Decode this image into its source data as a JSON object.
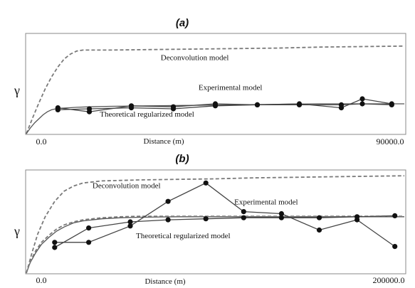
{
  "chart_data": [
    {
      "type": "line",
      "panel_label": "(a)",
      "ylabel": "γ",
      "xlabel": "Distance (m)",
      "x_tick_labels": [
        "0.0",
        "90000.0"
      ],
      "xlim": [
        0,
        90000
      ],
      "ylim": [
        0,
        1
      ],
      "grid": false,
      "series": [
        {
          "name": "Deconvolution model",
          "style": "dashed",
          "color": "#7a7a7a",
          "x": [
            0,
            1500,
            3000,
            4500,
            6000,
            7500,
            9000,
            10500,
            12000,
            13500,
            15000,
            20000,
            30000,
            40000,
            50000,
            60000,
            70000,
            80000,
            90000
          ],
          "y": [
            0.0,
            0.16,
            0.31,
            0.45,
            0.57,
            0.67,
            0.75,
            0.8,
            0.83,
            0.84,
            0.84,
            0.84,
            0.845,
            0.85,
            0.855,
            0.86,
            0.87,
            0.875,
            0.88
          ]
        },
        {
          "name": "Theoretical regularized model",
          "style": "solid",
          "color": "#555555",
          "x": [
            0,
            1000,
            2000,
            3000,
            4000,
            5000,
            6000,
            7000,
            8000,
            10000,
            12000,
            15000,
            20000,
            30000,
            40000,
            50000,
            60000,
            70000,
            80000,
            90000
          ],
          "y": [
            0.0,
            0.06,
            0.11,
            0.15,
            0.19,
            0.22,
            0.24,
            0.25,
            0.255,
            0.26,
            0.265,
            0.27,
            0.275,
            0.28,
            0.285,
            0.29,
            0.295,
            0.3,
            0.3,
            0.3
          ]
        },
        {
          "name": "Experimental model",
          "style": "solid-markers",
          "color": "#444444",
          "x": [
            7500,
            15000,
            25000,
            35000,
            45000,
            55000,
            65000,
            75000,
            80000,
            87000
          ],
          "y": [
            0.26,
            0.22,
            0.28,
            0.27,
            0.3,
            0.29,
            0.3,
            0.26,
            0.35,
            0.3
          ]
        },
        {
          "name": "",
          "style": "solid-markers",
          "color": "#444444",
          "x": [
            7500,
            15000,
            25000,
            35000,
            45000,
            55000,
            65000,
            75000,
            80000,
            87000
          ],
          "y": [
            0.24,
            0.25,
            0.26,
            0.25,
            0.28,
            0.29,
            0.29,
            0.29,
            0.3,
            0.29
          ]
        }
      ],
      "annotations": [
        {
          "text": "Deconvolution model",
          "x": 32000,
          "y": 0.74
        },
        {
          "text": "Experimental model",
          "x": 41000,
          "y": 0.44
        },
        {
          "text": "Theoretical regularized model",
          "x": 17500,
          "y": 0.17
        }
      ]
    },
    {
      "type": "line",
      "panel_label": "(b)",
      "ylabel": "γ",
      "xlabel": "Distance (m)",
      "x_tick_labels": [
        "0.0",
        "200000.0"
      ],
      "xlim": [
        0,
        200000
      ],
      "ylim": [
        0,
        1
      ],
      "grid": false,
      "series": [
        {
          "name": "Deconvolution model",
          "style": "dashed",
          "color": "#7a7a7a",
          "x": [
            0,
            3000,
            6000,
            10000,
            15000,
            20000,
            25000,
            30000,
            40000,
            50000,
            60000,
            80000,
            100000,
            120000,
            140000,
            160000,
            180000,
            200000
          ],
          "y": [
            0.0,
            0.2,
            0.38,
            0.55,
            0.7,
            0.8,
            0.85,
            0.88,
            0.9,
            0.905,
            0.91,
            0.915,
            0.92,
            0.93,
            0.935,
            0.94,
            0.945,
            0.95
          ]
        },
        {
          "name": "Theoretical regularized model",
          "style": "solid",
          "color": "#555555",
          "x": [
            0,
            2000,
            5000,
            8000,
            12000,
            16000,
            20000,
            25000,
            30000,
            40000,
            50000,
            60000,
            80000,
            100000,
            120000,
            140000,
            160000,
            180000,
            200000
          ],
          "y": [
            0.0,
            0.1,
            0.2,
            0.28,
            0.35,
            0.41,
            0.45,
            0.49,
            0.51,
            0.53,
            0.54,
            0.545,
            0.55,
            0.55,
            0.55,
            0.55,
            0.55,
            0.55,
            0.55
          ]
        },
        {
          "name": "",
          "style": "dashed",
          "color": "#7a7a7a",
          "x": [
            0,
            2000,
            5000,
            8000,
            12000,
            16000,
            20000,
            25000,
            30000,
            40000,
            50000,
            60000,
            80000,
            100000,
            120000,
            140000,
            160000,
            180000,
            200000
          ],
          "y": [
            0.0,
            0.11,
            0.22,
            0.3,
            0.37,
            0.43,
            0.47,
            0.5,
            0.52,
            0.54,
            0.55,
            0.555,
            0.555,
            0.555,
            0.555,
            0.555,
            0.555,
            0.555,
            0.555
          ]
        },
        {
          "name": "Experimental model",
          "style": "solid-markers",
          "color": "#444444",
          "x": [
            15000,
            33000,
            55000,
            75000,
            95000,
            115000,
            135000,
            155000,
            175000,
            195000
          ],
          "y": [
            0.3,
            0.3,
            0.46,
            0.7,
            0.88,
            0.6,
            0.58,
            0.42,
            0.52,
            0.26
          ]
        },
        {
          "name": "",
          "style": "solid-markers",
          "color": "#444444",
          "x": [
            15000,
            33000,
            55000,
            75000,
            95000,
            115000,
            135000,
            155000,
            175000,
            195000
          ],
          "y": [
            0.25,
            0.44,
            0.5,
            0.52,
            0.53,
            0.54,
            0.54,
            0.54,
            0.55,
            0.56
          ]
        }
      ],
      "annotations": [
        {
          "text": "Deconvolution model",
          "x": 35000,
          "y": 0.83
        },
        {
          "text": "Experimental model",
          "x": 110000,
          "y": 0.67
        },
        {
          "text": "Theoretical regularized model",
          "x": 58000,
          "y": 0.34
        }
      ]
    }
  ]
}
